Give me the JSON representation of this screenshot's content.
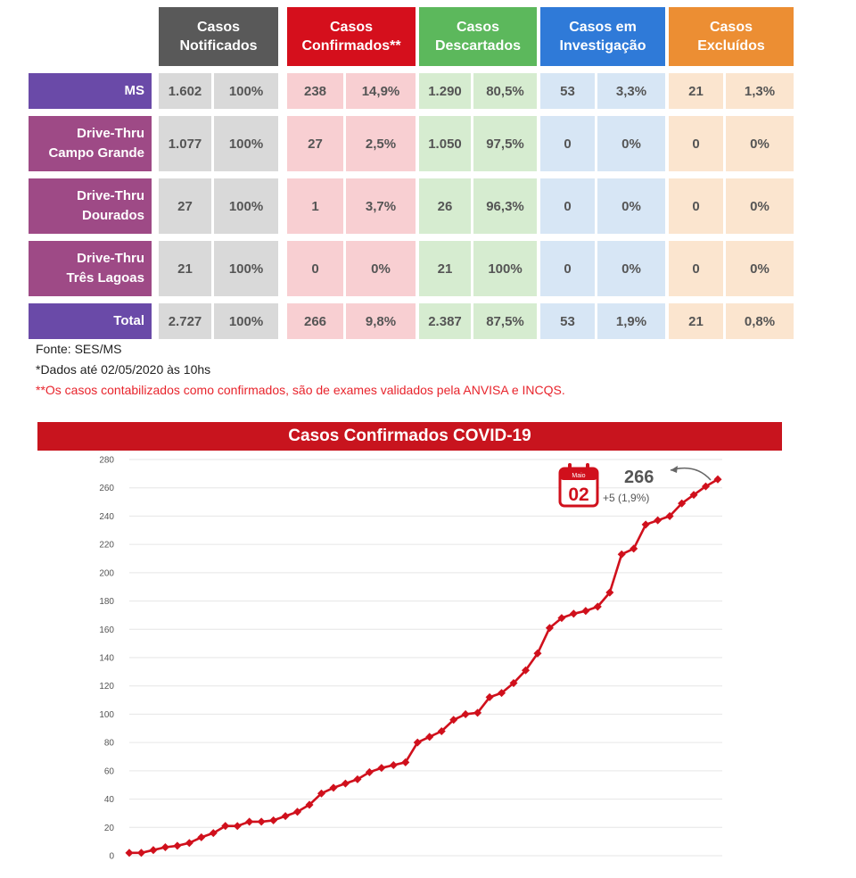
{
  "table": {
    "headers": [
      {
        "label": "Casos\nNotificados",
        "color": "#595959"
      },
      {
        "label": "Casos\nConfirmados**",
        "color": "#d50f1c"
      },
      {
        "label": "Casos\nDescartados",
        "color": "#5cb85c"
      },
      {
        "label": "Casos em\nInvestigação",
        "color": "#2f7ad8"
      },
      {
        "label": "Casos\nExcluídos",
        "color": "#ec8e33"
      }
    ],
    "group_fills": [
      "#d9d9d9",
      "#f8cfd2",
      "#d6ecd0",
      "#d7e6f5",
      "#fbe5cf"
    ],
    "rows": [
      {
        "label": "MS",
        "color": "#6a4aa8",
        "values": [
          "1.602",
          "100%",
          "238",
          "14,9%",
          "1.290",
          "80,5%",
          "53",
          "3,3%",
          "21",
          "1,3%"
        ]
      },
      {
        "label": "Drive-Thru\nCampo Grande",
        "color": "#9e4a86",
        "values": [
          "1.077",
          "100%",
          "27",
          "2,5%",
          "1.050",
          "97,5%",
          "0",
          "0%",
          "0",
          "0%"
        ]
      },
      {
        "label": "Drive-Thru\nDourados",
        "color": "#9e4a86",
        "values": [
          "27",
          "100%",
          "1",
          "3,7%",
          "26",
          "96,3%",
          "0",
          "0%",
          "0",
          "0%"
        ]
      },
      {
        "label": "Drive-Thru\nTrês Lagoas",
        "color": "#9e4a86",
        "values": [
          "21",
          "100%",
          "0",
          "0%",
          "21",
          "100%",
          "0",
          "0%",
          "0",
          "0%"
        ]
      },
      {
        "label": "Total",
        "color": "#6a4aa8",
        "values": [
          "2.727",
          "100%",
          "266",
          "9,8%",
          "2.387",
          "87,5%",
          "53",
          "1,9%",
          "21",
          "0,8%"
        ]
      }
    ]
  },
  "notes": {
    "source": "Fonte: SES/MS",
    "date_note": "*Dados até 02/05/2020 às 10hs",
    "confirmed_note": "**Os casos contabilizados como confirmados, são de exames validados pela ANVISA e INCQS."
  },
  "chart_data": {
    "type": "line",
    "title": "Casos Confirmados COVID-19",
    "ylim": [
      0,
      280
    ],
    "yticks": [
      0,
      20,
      40,
      60,
      80,
      100,
      120,
      140,
      160,
      180,
      200,
      220,
      240,
      260,
      280
    ],
    "grid": true,
    "series": [
      {
        "color": "#d0101c",
        "values": [
          2,
          2,
          4,
          6,
          7,
          9,
          13,
          16,
          21,
          21,
          24,
          24,
          25,
          28,
          31,
          36,
          44,
          48,
          51,
          54,
          59,
          62,
          64,
          66,
          80,
          84,
          88,
          96,
          100,
          101,
          112,
          115,
          122,
          131,
          143,
          161,
          168,
          171,
          173,
          176,
          186,
          213,
          217,
          234,
          237,
          240,
          249,
          255,
          261,
          266
        ]
      }
    ],
    "annotation": {
      "calendar_month": "Maio",
      "calendar_day": "02",
      "value": "266",
      "change": "+5 (1,9%)"
    }
  }
}
